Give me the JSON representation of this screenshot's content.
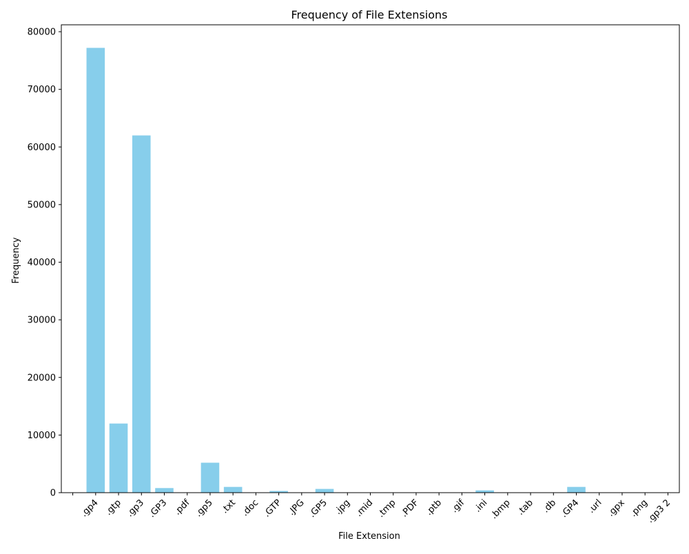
{
  "chart_data": {
    "type": "bar",
    "title": "Frequency of File Extensions",
    "xlabel": "File Extension",
    "ylabel": "Frequency",
    "ylim": [
      0,
      81200
    ],
    "yticks": [
      0,
      10000,
      20000,
      30000,
      40000,
      50000,
      60000,
      70000,
      80000
    ],
    "ytick_labels": [
      "0",
      "10000",
      "20000",
      "30000",
      "40000",
      "50000",
      "60000",
      "70000",
      "80000"
    ],
    "bar_color": "#87ceeb",
    "categories": [
      "",
      ".gp4",
      ".gtp",
      ".gp3",
      ".GP3",
      ".pdf",
      ".gp5",
      ".txt",
      ".doc",
      ".GTP",
      ".JPG",
      ".GP5",
      ".jpg",
      ".mid",
      ".tmp",
      ".PDF",
      ".ptb",
      ".gif",
      ".ini",
      ".bmp",
      ".tab",
      ".db",
      ".GP4",
      ".url",
      ".gpx",
      ".png",
      ".gp3 2"
    ],
    "values": [
      60,
      77200,
      12000,
      62000,
      800,
      40,
      5200,
      1000,
      50,
      300,
      60,
      650,
      30,
      40,
      10,
      10,
      30,
      40,
      400,
      40,
      10,
      10,
      1000,
      10,
      10,
      60,
      10
    ]
  }
}
